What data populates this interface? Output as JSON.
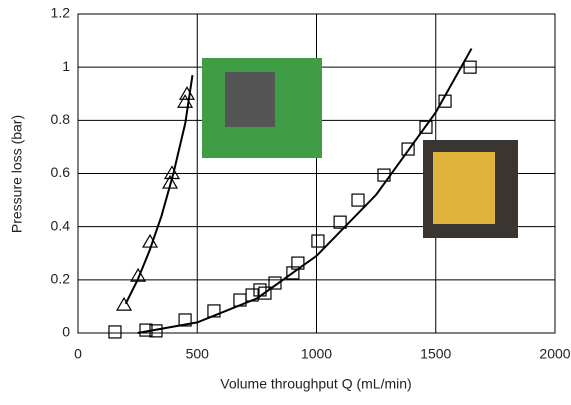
{
  "chart_data": {
    "type": "scatter",
    "xlabel": "Volume throughput Q (mL/min)",
    "ylabel": "Pressure loss (bar)",
    "xlim": [
      0,
      2000
    ],
    "xticks": [
      0,
      500,
      1000,
      1500,
      2000
    ],
    "ylim": [
      0,
      1.2
    ],
    "yticks": [
      0,
      0.2,
      0.4,
      0.6,
      0.8,
      1,
      1.2
    ],
    "grid": true,
    "series": [
      {
        "marker": "triangle",
        "color": "#000000",
        "x": [
          193,
          252,
          302,
          386,
          394,
          449,
          457
        ],
        "values": [
          0.105,
          0.214,
          0.342,
          0.564,
          0.6,
          0.868,
          0.898
        ]
      },
      {
        "marker": "square",
        "color": "#000000",
        "x": [
          155,
          285,
          327,
          449,
          570,
          679,
          730,
          763,
          784,
          826,
          901,
          922,
          1006,
          1099,
          1174,
          1283,
          1384,
          1459,
          1539,
          1644
        ],
        "values": [
          0.004,
          0.011,
          0.008,
          0.049,
          0.083,
          0.124,
          0.143,
          0.162,
          0.15,
          0.188,
          0.226,
          0.263,
          0.346,
          0.417,
          0.5,
          0.594,
          0.692,
          0.774,
          0.872,
          1.0
        ]
      },
      {
        "marker": "line",
        "color": "#000000",
        "x": [
          200,
          250,
          300,
          350,
          400,
          450,
          480
        ],
        "values": [
          0.11,
          0.2,
          0.31,
          0.44,
          0.6,
          0.79,
          0.97
        ]
      },
      {
        "marker": "line",
        "color": "#000000",
        "x": [
          250,
          500,
          750,
          1000,
          1250,
          1500,
          1650
        ],
        "values": [
          0,
          0.04,
          0.13,
          0.29,
          0.52,
          0.83,
          1.07
        ]
      }
    ]
  }
}
